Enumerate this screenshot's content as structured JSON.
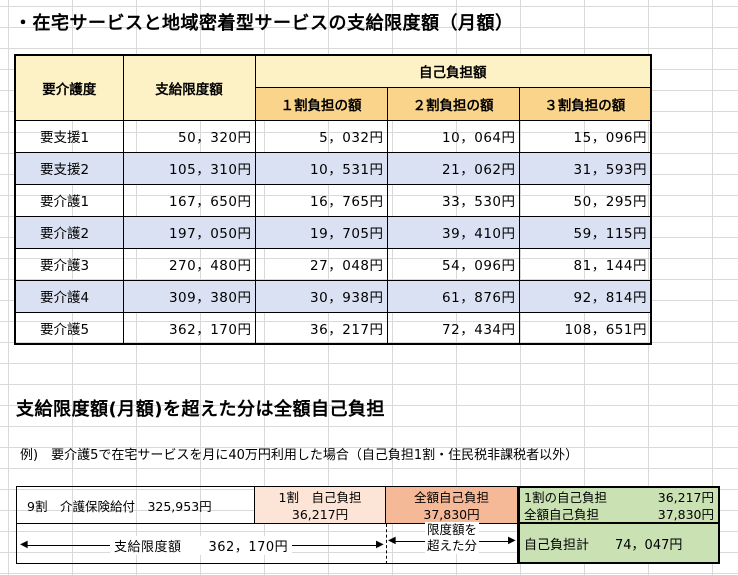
{
  "title": "・在宅サービスと地域密着型サービスの支給限度額（月額）",
  "table": {
    "col_care": "要介護度",
    "col_limit": "支給限度額",
    "col_self": "自己負担額",
    "col_1": "１割負担の額",
    "col_2": "２割負担の額",
    "col_3": "３割負担の額",
    "rows": [
      {
        "level": "要支援1",
        "limit": "50，320円",
        "r1": "5，032円",
        "r2": "10，064円",
        "r3": "15，096円"
      },
      {
        "level": "要支援2",
        "limit": "105，310円",
        "r1": "10，531円",
        "r2": "21，062円",
        "r3": "31，593円"
      },
      {
        "level": "要介護1",
        "limit": "167，650円",
        "r1": "16，765円",
        "r2": "33，530円",
        "r3": "50，295円"
      },
      {
        "level": "要介護2",
        "limit": "197，050円",
        "r1": "19，705円",
        "r2": "39，410円",
        "r3": "59，115円"
      },
      {
        "level": "要介護3",
        "limit": "270，480円",
        "r1": "27，048円",
        "r2": "54，096円",
        "r3": "81，144円"
      },
      {
        "level": "要介護4",
        "limit": "309，380円",
        "r1": "30，938円",
        "r2": "61，876円",
        "r3": "92，814円"
      },
      {
        "level": "要介護5",
        "limit": "362，170円",
        "r1": "36，217円",
        "r2": "72，434円",
        "r3": "108，651円"
      }
    ]
  },
  "subtitle": "支給限度額(月額)を超えた分は全額自己負担",
  "example": "例)　要介護5で在宅サービスを月に40万円利用した場合（自己負担1割・住民税非課税者以外）",
  "breakdown": {
    "insurance": "9割　介護保険給付　325,953円",
    "self_label": "1割　自己負担",
    "self_value": "36,217円",
    "full_label": "全額自己負担",
    "full_value": "37,830円",
    "sum_self_label": "1割の自己負担",
    "sum_self_value": "36,217円",
    "sum_full_label": "全額自己負担",
    "sum_full_value": "37,830円",
    "limit_text": "支給限度額　　362，170円",
    "over_text_1": "限度額を",
    "over_text_2": "超えた分",
    "total": "自己負担計　　74，047円"
  }
}
